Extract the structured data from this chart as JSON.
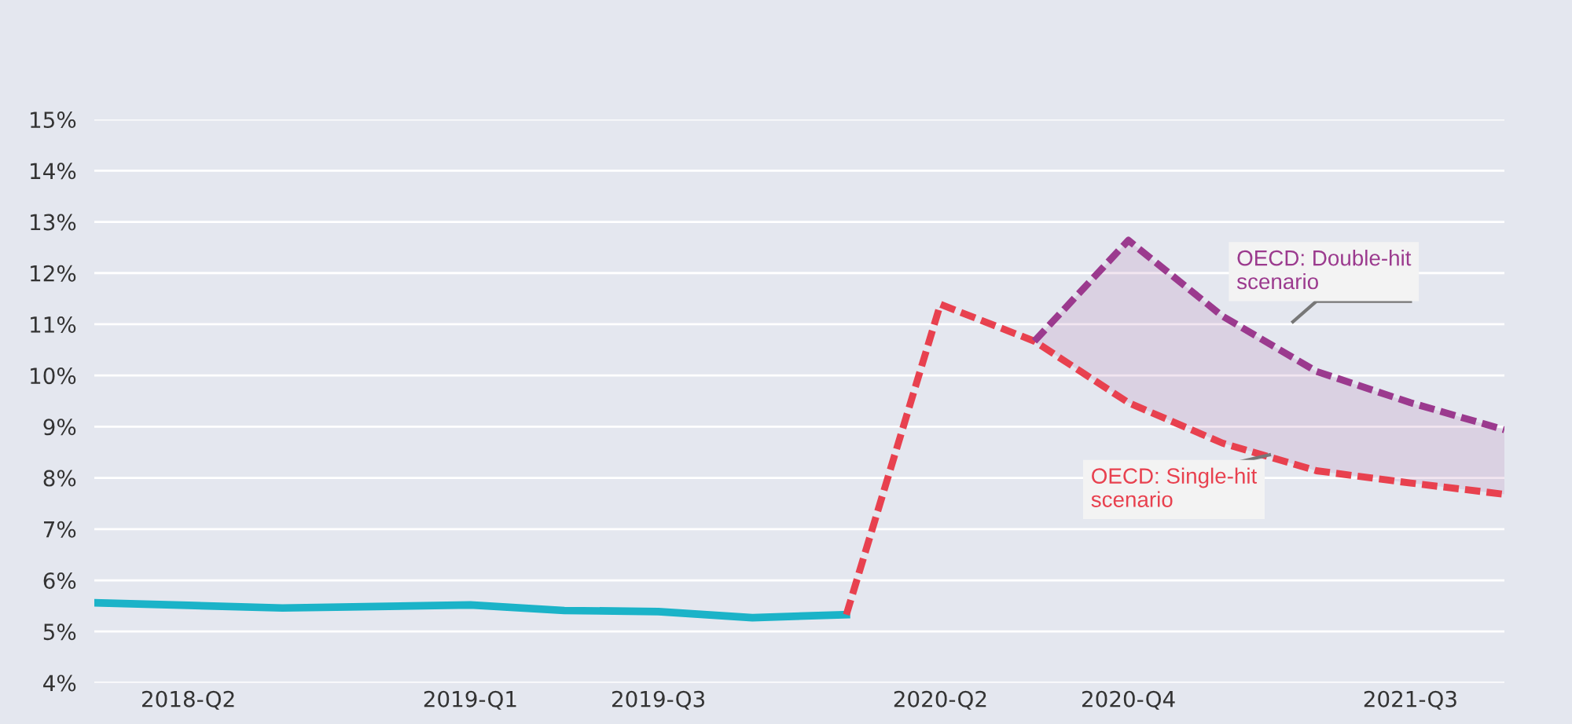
{
  "chart_data": {
    "type": "line",
    "categories": [
      null,
      "2018-Q2",
      null,
      null,
      "2019-Q1",
      null,
      "2019-Q3",
      null,
      null,
      "2020-Q2",
      null,
      "2020-Q4",
      null,
      null,
      "2021-Q3",
      null
    ],
    "series": [
      {
        "color": "#1bb3c8",
        "line_style": "solid",
        "values": [
          5.56,
          5.51,
          5.46,
          5.49,
          5.52,
          5.41,
          5.39,
          5.27,
          5.33,
          null,
          null,
          null,
          null,
          null,
          null,
          null
        ]
      },
      {
        "name": "OECD: Single-hit scenario",
        "color": "#e8414f",
        "line_style": "dashed",
        "values": [
          null,
          null,
          null,
          null,
          null,
          null,
          null,
          null,
          5.33,
          11.39,
          10.67,
          9.47,
          8.68,
          8.14,
          7.9,
          7.68
        ]
      },
      {
        "name": "OECD: Double-hit scenario",
        "color": "#9b3a8e",
        "line_style": "dashed",
        "values": [
          null,
          null,
          null,
          null,
          null,
          null,
          null,
          null,
          null,
          null,
          10.67,
          12.64,
          11.16,
          10.08,
          9.47,
          8.94
        ],
        "lower": [
          null,
          null,
          null,
          null,
          null,
          null,
          null,
          null,
          null,
          null,
          10.67,
          9.47,
          8.68,
          8.14,
          7.9,
          7.68
        ],
        "upper": [
          null,
          null,
          null,
          null,
          null,
          null,
          null,
          null,
          null,
          null,
          10.67,
          12.64,
          11.16,
          10.08,
          9.47,
          8.94
        ]
      }
    ],
    "ylim": [
      4,
      15
    ],
    "yticks": [
      {
        "value": 4,
        "label": "4%"
      },
      {
        "value": 5,
        "label": "5%"
      },
      {
        "value": 6,
        "label": "6%"
      },
      {
        "value": 7,
        "label": "7%"
      },
      {
        "value": 8,
        "label": "8%"
      },
      {
        "value": 9,
        "label": "9%"
      },
      {
        "value": 10,
        "label": "10%"
      },
      {
        "value": 11,
        "label": "11%"
      },
      {
        "value": 12,
        "label": "12%"
      },
      {
        "value": 13,
        "label": "13%"
      },
      {
        "value": 14,
        "label": "14%"
      },
      {
        "value": 15,
        "label": "15%"
      }
    ],
    "grid": "y",
    "marker": "none",
    "legend": false
  }
}
